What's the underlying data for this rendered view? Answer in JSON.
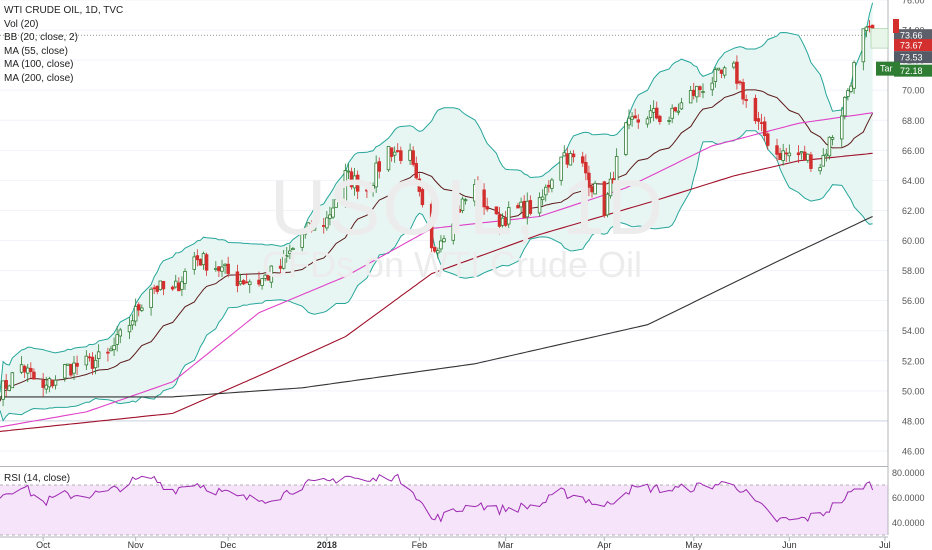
{
  "legend": {
    "symbol": "WTI CRUDE OIL, 1D, TVC",
    "indicators": [
      "Vol (20)",
      "BB (20, close, 2)",
      "MA (55, close)",
      "MA (100, close)",
      "MA (200, close)"
    ]
  },
  "rsi_legend": "RSI (14, close)",
  "watermark": {
    "symbol": "USOIL, 1D",
    "description": "CFDs on WTI Crude Oil"
  },
  "colors": {
    "up": "#2e7d32",
    "down": "#d32f2f",
    "bb": "#26a69a",
    "bb_fill": "#e8f6f3",
    "ma20": "#5b1a1a",
    "ma55": "#e040c8",
    "ma100": "#a0102a",
    "ma200": "#333333",
    "rsi": "#9c27b0",
    "rsi_fill": "#f6e4fb"
  },
  "chart_data": {
    "type": "candlestick",
    "title": "WTI CRUDE OIL, 1D, TVC",
    "ylim": [
      45,
      76
    ],
    "yticks": [
      "76.00",
      "74.00",
      "72.00",
      "70.00",
      "68.00",
      "66.00",
      "64.00",
      "62.00",
      "60.00",
      "58.00",
      "56.00",
      "54.00",
      "52.00",
      "50.00",
      "48.00",
      "46.00"
    ],
    "xticks": [
      "Oct",
      "Nov",
      "Dec",
      "2018",
      "Feb",
      "Mar",
      "Apr",
      "May",
      "Jun",
      "Jul"
    ],
    "xrange": [
      "2017-09-18",
      "2018-07-03"
    ],
    "last_close": 73.66,
    "price_labels": [
      "73.66",
      "73.67",
      "73.53",
      "72.18"
    ],
    "target_label": "Tar",
    "reference_line": 48.0,
    "close_anchors": [
      [
        "2017-09-18",
        49.9
      ],
      [
        "2017-09-25",
        51.7
      ],
      [
        "2017-10-02",
        50.0
      ],
      [
        "2017-10-09",
        51.5
      ],
      [
        "2017-10-16",
        51.8
      ],
      [
        "2017-10-23",
        52.3
      ],
      [
        "2017-10-30",
        54.5
      ],
      [
        "2017-11-06",
        57.0
      ],
      [
        "2017-11-13",
        56.5
      ],
      [
        "2017-11-20",
        58.9
      ],
      [
        "2017-11-27",
        58.3
      ],
      [
        "2017-12-04",
        57.4
      ],
      [
        "2017-12-11",
        57.3
      ],
      [
        "2017-12-18",
        58.2
      ],
      [
        "2017-12-25",
        60.4
      ],
      [
        "2018-01-02",
        61.4
      ],
      [
        "2018-01-08",
        64.3
      ],
      [
        "2018-01-15",
        63.4
      ],
      [
        "2018-01-22",
        66.1
      ],
      [
        "2018-01-29",
        65.5
      ],
      [
        "2018-02-05",
        59.2
      ],
      [
        "2018-02-12",
        61.7
      ],
      [
        "2018-02-19",
        63.5
      ],
      [
        "2018-02-26",
        61.3
      ],
      [
        "2018-03-05",
        62.0
      ],
      [
        "2018-03-12",
        62.3
      ],
      [
        "2018-03-19",
        65.9
      ],
      [
        "2018-03-26",
        64.9
      ],
      [
        "2018-04-02",
        62.1
      ],
      [
        "2018-04-09",
        67.4
      ],
      [
        "2018-04-16",
        68.4
      ],
      [
        "2018-04-23",
        68.1
      ],
      [
        "2018-04-30",
        69.7
      ],
      [
        "2018-05-07",
        70.7
      ],
      [
        "2018-05-14",
        71.3
      ],
      [
        "2018-05-21",
        67.9
      ],
      [
        "2018-05-28",
        65.8
      ],
      [
        "2018-06-04",
        65.7
      ],
      [
        "2018-06-11",
        65.1
      ],
      [
        "2018-06-18",
        68.6
      ],
      [
        "2018-06-25",
        73.7
      ]
    ],
    "rsi": {
      "ylim": [
        30,
        82
      ],
      "yticks": [
        "80.0000",
        "60.0000",
        "40.0000"
      ],
      "bands": [
        70,
        30
      ],
      "anchors": [
        [
          "2017-09-18",
          62
        ],
        [
          "2017-09-25",
          70
        ],
        [
          "2017-10-02",
          56
        ],
        [
          "2017-10-09",
          62
        ],
        [
          "2017-10-16",
          62
        ],
        [
          "2017-10-23",
          64
        ],
        [
          "2017-10-30",
          72
        ],
        [
          "2017-11-06",
          76
        ],
        [
          "2017-11-13",
          66
        ],
        [
          "2017-11-20",
          72
        ],
        [
          "2017-11-27",
          66
        ],
        [
          "2017-12-04",
          60
        ],
        [
          "2017-12-11",
          58
        ],
        [
          "2017-12-18",
          62
        ],
        [
          "2017-12-25",
          70
        ],
        [
          "2018-01-02",
          72
        ],
        [
          "2018-01-08",
          78
        ],
        [
          "2018-01-15",
          72
        ],
        [
          "2018-01-22",
          78
        ],
        [
          "2018-01-29",
          70
        ],
        [
          "2018-02-05",
          42
        ],
        [
          "2018-02-12",
          48
        ],
        [
          "2018-02-19",
          56
        ],
        [
          "2018-02-26",
          50
        ],
        [
          "2018-03-05",
          52
        ],
        [
          "2018-03-12",
          54
        ],
        [
          "2018-03-19",
          64
        ],
        [
          "2018-03-26",
          60
        ],
        [
          "2018-04-02",
          52
        ],
        [
          "2018-04-09",
          66
        ],
        [
          "2018-04-16",
          68
        ],
        [
          "2018-04-23",
          66
        ],
        [
          "2018-04-30",
          68
        ],
        [
          "2018-05-07",
          70
        ],
        [
          "2018-05-14",
          72
        ],
        [
          "2018-05-21",
          56
        ],
        [
          "2018-05-28",
          42
        ],
        [
          "2018-06-04",
          42
        ],
        [
          "2018-06-11",
          46
        ],
        [
          "2018-06-18",
          58
        ],
        [
          "2018-06-25",
          70
        ]
      ]
    },
    "ma_anchors": {
      "ma200": [
        [
          "2017-09-18",
          49.6
        ],
        [
          "2017-11-13",
          49.6
        ],
        [
          "2017-12-25",
          50.2
        ],
        [
          "2018-02-19",
          51.8
        ],
        [
          "2018-04-16",
          54.4
        ],
        [
          "2018-05-28",
          58.6
        ],
        [
          "2018-06-28",
          61.6
        ]
      ],
      "ma100": [
        [
          "2017-09-18",
          47.3
        ],
        [
          "2017-10-16",
          47.9
        ],
        [
          "2017-11-13",
          48.5
        ],
        [
          "2017-12-11",
          51.0
        ],
        [
          "2018-01-08",
          53.6
        ],
        [
          "2018-02-05",
          57.8
        ],
        [
          "2018-03-12",
          60.4
        ],
        [
          "2018-04-16",
          62.5
        ],
        [
          "2018-05-14",
          64.3
        ],
        [
          "2018-06-04",
          65.3
        ],
        [
          "2018-06-28",
          65.8
        ]
      ],
      "ma55": [
        [
          "2017-09-18",
          47.6
        ],
        [
          "2017-10-16",
          48.6
        ],
        [
          "2017-11-13",
          50.6
        ],
        [
          "2017-12-11",
          55.2
        ],
        [
          "2018-01-08",
          57.6
        ],
        [
          "2018-02-05",
          60.8
        ],
        [
          "2018-03-12",
          61.6
        ],
        [
          "2018-04-09",
          63.5
        ],
        [
          "2018-05-07",
          66.3
        ],
        [
          "2018-06-04",
          67.8
        ],
        [
          "2018-06-28",
          68.5
        ]
      ]
    }
  }
}
